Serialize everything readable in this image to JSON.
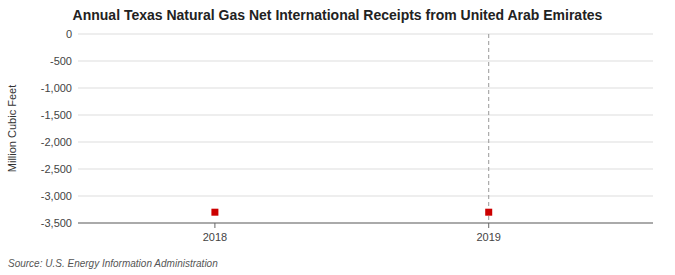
{
  "chart_data": {
    "type": "scatter",
    "title": "Annual Texas Natural Gas Net International Receipts from United Arab Emirates",
    "ylabel": "Million Cubic Feet",
    "source": "Source: U.S. Energy Information Administration",
    "x": [
      2018,
      2019
    ],
    "values": [
      -3300,
      -3300
    ],
    "color": "#cc0000",
    "marker": "square",
    "vline": 2019,
    "xlim": [
      2017.5,
      2019.6
    ],
    "ylim": [
      -3500,
      0
    ],
    "xticks": [
      2018,
      2019
    ],
    "yticks": [
      0,
      -500,
      {
        "value": -1000,
        "label": "-1,000"
      },
      {
        "value": -1500,
        "label": "-1,500"
      },
      {
        "value": -2000,
        "label": "-2,000"
      },
      {
        "value": -2500,
        "label": "-2,500"
      },
      {
        "value": -3000,
        "label": "-3,000"
      },
      {
        "value": -3500,
        "label": "-3,500"
      }
    ],
    "grid": true
  }
}
